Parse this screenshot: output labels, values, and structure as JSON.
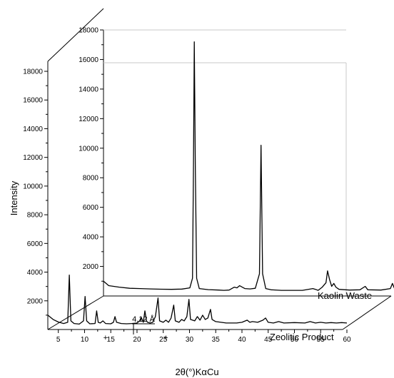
{
  "chart_data": {
    "type": "line",
    "xlabel": "2θ(°)KαCu",
    "ylabel": "Intensity",
    "xlim": [
      3,
      60
    ],
    "ylim": [
      0,
      18000
    ],
    "x_ticks": [
      5,
      10,
      15,
      20,
      25,
      30,
      35,
      40,
      45,
      50,
      55,
      60
    ],
    "y_ticks": [
      2000,
      4000,
      6000,
      8000,
      10000,
      12000,
      14000,
      16000,
      18000
    ],
    "grid": false,
    "annotations": [
      {
        "text": "4.12 Å",
        "x": 21.5,
        "series": "Zeolitic Product"
      },
      {
        "text": "+",
        "x": 14.0,
        "series": "Zeolitic Product"
      },
      {
        "text": "+",
        "x": 25.5,
        "series": "Zeolitic Product"
      }
    ],
    "series": [
      {
        "name": "Kaolin Waste",
        "points": [
          [
            3,
            1000
          ],
          [
            4,
            700
          ],
          [
            6,
            600
          ],
          [
            8,
            520
          ],
          [
            10,
            500
          ],
          [
            12,
            480
          ],
          [
            14,
            460
          ],
          [
            16,
            450
          ],
          [
            18,
            470
          ],
          [
            19.5,
            550
          ],
          [
            20,
            1200
          ],
          [
            20.2,
            9000
          ],
          [
            20.35,
            17200
          ],
          [
            20.55,
            8500
          ],
          [
            20.8,
            1200
          ],
          [
            21.3,
            500
          ],
          [
            23,
            430
          ],
          [
            25,
            400
          ],
          [
            26,
            380
          ],
          [
            27,
            400
          ],
          [
            28,
            600
          ],
          [
            28.5,
            550
          ],
          [
            29,
            700
          ],
          [
            29.5,
            600
          ],
          [
            30,
            500
          ],
          [
            31,
            480
          ],
          [
            32,
            520
          ],
          [
            32.8,
            1500
          ],
          [
            33.1,
            10200
          ],
          [
            33.4,
            1500
          ],
          [
            34,
            500
          ],
          [
            35,
            420
          ],
          [
            37,
            380
          ],
          [
            39,
            380
          ],
          [
            41,
            380
          ],
          [
            43,
            500
          ],
          [
            43.5,
            450
          ],
          [
            44,
            380
          ],
          [
            44.8,
            600
          ],
          [
            45.5,
            900
          ],
          [
            45.8,
            1700
          ],
          [
            46.2,
            1100
          ],
          [
            46.6,
            650
          ],
          [
            47,
            850
          ],
          [
            47.4,
            600
          ],
          [
            48,
            450
          ],
          [
            50,
            400
          ],
          [
            52,
            420
          ],
          [
            53,
            650
          ],
          [
            53.5,
            420
          ],
          [
            56,
            400
          ],
          [
            57.8,
            500
          ],
          [
            58.2,
            850
          ],
          [
            58.6,
            500
          ],
          [
            59,
            420
          ],
          [
            60,
            380
          ]
        ]
      },
      {
        "name": "Zeolitic Product",
        "points": [
          [
            3,
            1000
          ],
          [
            4,
            700
          ],
          [
            5,
            520
          ],
          [
            6,
            420
          ],
          [
            6.8,
            500
          ],
          [
            7.1,
            3800
          ],
          [
            7.4,
            600
          ],
          [
            8,
            420
          ],
          [
            9,
            380
          ],
          [
            9.8,
            600
          ],
          [
            10.1,
            2300
          ],
          [
            10.4,
            600
          ],
          [
            11,
            400
          ],
          [
            12,
            420
          ],
          [
            12.3,
            1300
          ],
          [
            12.6,
            500
          ],
          [
            13,
            450
          ],
          [
            13.5,
            600
          ],
          [
            14,
            420
          ],
          [
            15,
            400
          ],
          [
            15.5,
            500
          ],
          [
            15.8,
            900
          ],
          [
            16.1,
            500
          ],
          [
            17,
            420
          ],
          [
            18,
            400
          ],
          [
            19,
            420
          ],
          [
            20,
            450
          ],
          [
            20.5,
            600
          ],
          [
            20.8,
            850
          ],
          [
            21.2,
            500
          ],
          [
            21.5,
            1300
          ],
          [
            21.8,
            600
          ],
          [
            22,
            500
          ],
          [
            22.5,
            450
          ],
          [
            23,
            500
          ],
          [
            23.5,
            900
          ],
          [
            24,
            2200
          ],
          [
            24.3,
            600
          ],
          [
            25,
            500
          ],
          [
            25.5,
            650
          ],
          [
            26,
            500
          ],
          [
            26.5,
            800
          ],
          [
            27,
            1700
          ],
          [
            27.3,
            600
          ],
          [
            28,
            500
          ],
          [
            28.5,
            700
          ],
          [
            29,
            600
          ],
          [
            29.5,
            900
          ],
          [
            29.9,
            2100
          ],
          [
            30.2,
            700
          ],
          [
            31,
            600
          ],
          [
            31.5,
            900
          ],
          [
            32,
            650
          ],
          [
            32.5,
            1000
          ],
          [
            33,
            700
          ],
          [
            33.5,
            800
          ],
          [
            34,
            1400
          ],
          [
            34.3,
            700
          ],
          [
            35,
            550
          ],
          [
            36,
            500
          ],
          [
            37,
            450
          ],
          [
            38,
            450
          ],
          [
            39,
            450
          ],
          [
            40,
            500
          ],
          [
            41,
            650
          ],
          [
            41.5,
            500
          ],
          [
            42,
            550
          ],
          [
            43,
            500
          ],
          [
            44,
            650
          ],
          [
            44.5,
            800
          ],
          [
            45,
            500
          ],
          [
            46,
            450
          ],
          [
            47,
            550
          ],
          [
            48,
            450
          ],
          [
            50,
            480
          ],
          [
            52,
            450
          ],
          [
            53,
            550
          ],
          [
            54,
            450
          ],
          [
            55,
            500
          ],
          [
            56,
            450
          ],
          [
            57,
            480
          ],
          [
            58,
            450
          ],
          [
            59,
            480
          ],
          [
            60,
            450
          ]
        ]
      }
    ]
  }
}
